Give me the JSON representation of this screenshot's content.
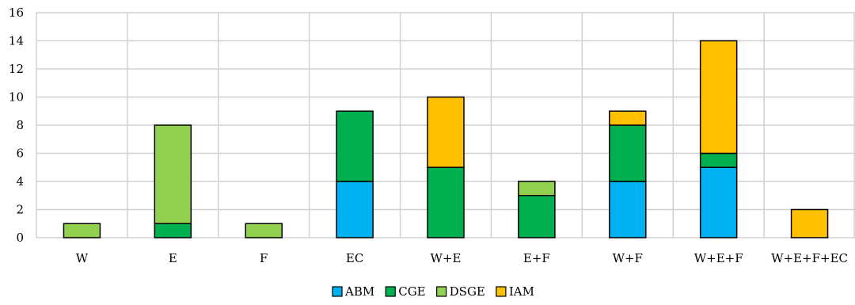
{
  "chart_data": {
    "type": "bar",
    "stacked": true,
    "title": "",
    "xlabel": "",
    "ylabel": "",
    "ylim": [
      0,
      16
    ],
    "yticks": [
      0,
      2,
      4,
      6,
      8,
      10,
      12,
      14,
      16
    ],
    "grid": true,
    "legend_position": "bottom-center",
    "categories": [
      "W",
      "E",
      "F",
      "EC",
      "W+E",
      "E+F",
      "W+F",
      "W+E+F",
      "W+E+F+EC"
    ],
    "series": [
      {
        "name": "ABM",
        "color": "#00b0f0",
        "values": [
          0,
          0,
          0,
          4,
          0,
          0,
          4,
          5,
          0
        ]
      },
      {
        "name": "CGE",
        "color": "#00b050",
        "values": [
          0,
          1,
          0,
          5,
          5,
          3,
          4,
          1,
          0
        ]
      },
      {
        "name": "DSGE",
        "color": "#92d050",
        "values": [
          1,
          7,
          1,
          0,
          0,
          1,
          0,
          0,
          0
        ]
      },
      {
        "name": "IAM",
        "color": "#ffc000",
        "values": [
          0,
          0,
          0,
          0,
          5,
          0,
          1,
          8,
          2
        ]
      }
    ]
  }
}
